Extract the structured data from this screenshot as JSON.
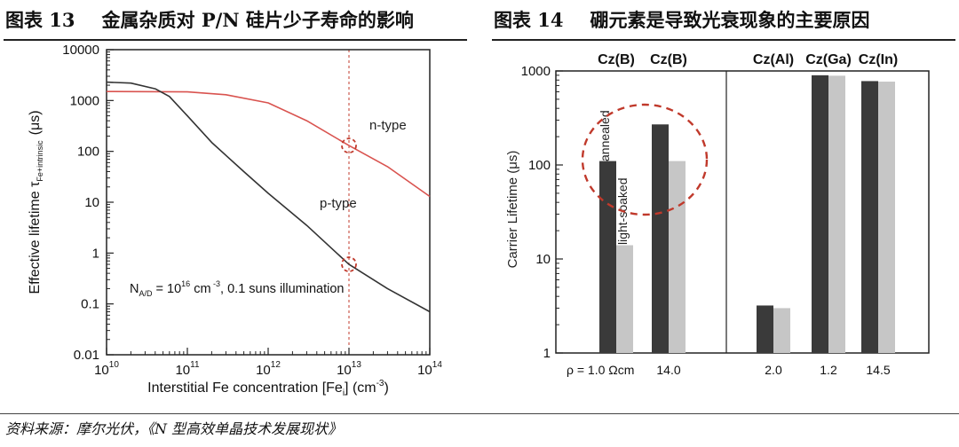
{
  "left_header": {
    "num": "图表 13",
    "title": "金属杂质对 P/N 硅片少子寿命的影响"
  },
  "right_header": {
    "num": "图表 14",
    "title": "硼元素是导致光衰现象的主要原因"
  },
  "source": "资料来源：摩尔光伏，《N 型高效单晶技术发展现状》",
  "chart_data": [
    {
      "type": "line",
      "xlabel_prefix": "Interstitial Fe concentration [Fe",
      "xlabel_sub": "i",
      "xlabel_suffix": "] (cm",
      "xlabel_sup": "-3",
      "xlabel_close": ")",
      "ylabel": "Effective lifetime τ",
      "ylabel_sub": "Fe+intrinsic",
      "ylabel_unit": "(μs)",
      "x_log": true,
      "y_log": true,
      "xlim": [
        10000000000.0,
        100000000000000.0
      ],
      "ylim": [
        0.01,
        10000
      ],
      "x_ticks": [
        {
          "base": "10",
          "exp": "10"
        },
        {
          "base": "10",
          "exp": "11"
        },
        {
          "base": "10",
          "exp": "12"
        },
        {
          "base": "10",
          "exp": "13"
        },
        {
          "base": "10",
          "exp": "14"
        }
      ],
      "y_ticks": [
        "0.01",
        "0.1",
        "1",
        "10",
        "100",
        "1000",
        "10000"
      ],
      "series": [
        {
          "name": "n-type",
          "color": "#d9534f",
          "x": [
            10000000000.0,
            100000000000.0,
            300000000000.0,
            1000000000000.0,
            3000000000000.0,
            10000000000000.0,
            30000000000000.0,
            100000000000000.0
          ],
          "y": [
            1500,
            1480,
            1300,
            900,
            400,
            130,
            50,
            13
          ]
        },
        {
          "name": "p-type",
          "color": "#333333",
          "x": [
            10000000000.0,
            20000000000.0,
            40000000000.0,
            60000000000.0,
            100000000000.0,
            200000000000.0,
            500000000000.0,
            1000000000000.0,
            3000000000000.0,
            10000000000000.0,
            30000000000000.0,
            100000000000000.0
          ],
          "y": [
            2300,
            2200,
            1700,
            1200,
            500,
            150,
            40,
            15,
            3.5,
            0.6,
            0.2,
            0.07
          ]
        }
      ],
      "reference_x": 10000000000000.0,
      "markers": [
        {
          "x": 10000000000000.0,
          "y": 130
        },
        {
          "x": 10000000000000.0,
          "y": 0.6
        }
      ],
      "annotation": {
        "prefix": "N",
        "sub": "A/D",
        "mid": " = 10",
        "sup1": "16",
        "unit": " cm",
        "sup2": " -3",
        "rest": ", 0.1 suns illumination"
      }
    },
    {
      "type": "bar",
      "ylabel": "Carrier Lifetime (μs)",
      "y_log": true,
      "ylim": [
        1,
        1000
      ],
      "y_ticks": [
        "1",
        "10",
        "100",
        "1000"
      ],
      "categories": [
        "Cz(B)",
        "Cz(B)",
        "Cz(Al)",
        "Cz(Ga)",
        "Cz(In)"
      ],
      "rho_prefix": "ρ = 1.0 Ωcm",
      "resistivity": [
        "",
        "14.0",
        "2.0",
        "1.2",
        "14.5"
      ],
      "series": [
        {
          "name": "annealed",
          "color": "#3a3a3a",
          "values": [
            110,
            270,
            3.2,
            900,
            780
          ]
        },
        {
          "name": "light-soaked",
          "color": "#c6c6c6",
          "values": [
            14,
            110,
            3.0,
            890,
            770
          ]
        }
      ]
    }
  ]
}
